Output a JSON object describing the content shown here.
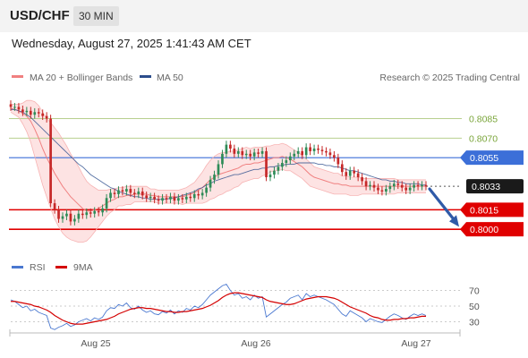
{
  "header": {
    "symbol": "USD/CHF",
    "timeframe": "30 MIN"
  },
  "datetime": "Wednesday, August 27, 2025 1:41:43 AM CET",
  "legend": {
    "bollinger": "MA 20 + Bollinger Bands",
    "ma50": "MA 50",
    "credit": "Research © 2025 Trading Central",
    "rsi": "RSI",
    "rsi_ma": "9MA"
  },
  "colors": {
    "bollinger": "#f08080",
    "bollinger_fill": "#fde3e3",
    "ma50": "#2c4d8c",
    "up_candle": "#2e8b57",
    "down_candle": "#c62828",
    "resistance": "#b8cf8f",
    "pivot": "#3c6fd8",
    "support": "#e00000",
    "current": "#1a1a1a",
    "rsi": "#4a78d0",
    "rsi_ma": "#d40000",
    "arrow": "#2f5aa8"
  },
  "chart_data": [
    {
      "type": "candlestick",
      "x_labels": [
        "Aug 25",
        "Aug 26",
        "Aug 27"
      ],
      "ylim": [
        0.7985,
        0.8095
      ],
      "levels": [
        {
          "value": "0.8085",
          "kind": "resistance"
        },
        {
          "value": "0.8070",
          "kind": "resistance"
        },
        {
          "value": "0.8055",
          "kind": "pivot"
        },
        {
          "value": "0.8033",
          "kind": "current"
        },
        {
          "value": "0.8015",
          "kind": "support"
        },
        {
          "value": "0.8000",
          "kind": "support"
        }
      ],
      "close_series": [
        0.8094,
        0.8094,
        0.8092,
        0.809,
        0.8091,
        0.8088,
        0.809,
        0.8089,
        0.8087,
        0.8085,
        0.802,
        0.8015,
        0.8008,
        0.801,
        0.8012,
        0.8006,
        0.8008,
        0.8012,
        0.8011,
        0.8013,
        0.8012,
        0.8014,
        0.8013,
        0.8016,
        0.8024,
        0.8028,
        0.8027,
        0.803,
        0.8029,
        0.8031,
        0.8028,
        0.8027,
        0.8029,
        0.8026,
        0.8024,
        0.8025,
        0.8023,
        0.8022,
        0.8024,
        0.8023,
        0.8025,
        0.8022,
        0.8024,
        0.8023,
        0.8025,
        0.8024,
        0.8027,
        0.8026,
        0.8028,
        0.8032,
        0.8038,
        0.8042,
        0.805,
        0.8058,
        0.8065,
        0.8062,
        0.8058,
        0.806,
        0.8057,
        0.8058,
        0.8056,
        0.8059,
        0.8058,
        0.806,
        0.804,
        0.8042,
        0.8045,
        0.8048,
        0.8051,
        0.8053,
        0.8056,
        0.8058,
        0.806,
        0.8057,
        0.8063,
        0.806,
        0.8062,
        0.8061,
        0.806,
        0.8059,
        0.8057,
        0.8055,
        0.805,
        0.8044,
        0.8041,
        0.8045,
        0.8043,
        0.804,
        0.8037,
        0.8033,
        0.8034,
        0.8032,
        0.803,
        0.8029,
        0.8031,
        0.8033,
        0.8035,
        0.8034,
        0.8032,
        0.803,
        0.8032,
        0.8034,
        0.8033,
        0.8034,
        0.8033
      ],
      "ma20_series": [
        0.8093,
        0.8092,
        0.8091,
        0.8089,
        0.8087,
        0.8083,
        0.8077,
        0.807,
        0.8062,
        0.8055,
        0.8049,
        0.8043,
        0.8038,
        0.8033,
        0.8029,
        0.8025,
        0.8022,
        0.8019,
        0.8016,
        0.8014,
        0.8014,
        0.8015,
        0.8016,
        0.8018,
        0.802,
        0.8022,
        0.8023,
        0.8025,
        0.8025,
        0.8026,
        0.8026,
        0.8027,
        0.8027,
        0.8027,
        0.8027,
        0.8026,
        0.8026,
        0.8025,
        0.8025,
        0.8025,
        0.8025,
        0.8025,
        0.8025,
        0.8025,
        0.8026,
        0.8027,
        0.8028,
        0.803,
        0.8032,
        0.8035,
        0.8038,
        0.804,
        0.8042,
        0.8043,
        0.8044,
        0.8045,
        0.8046,
        0.8047,
        0.8049,
        0.805,
        0.805,
        0.8051,
        0.8051,
        0.8052,
        0.8053,
        0.8054,
        0.8055,
        0.8055,
        0.8056,
        0.8055,
        0.8054,
        0.8052,
        0.805,
        0.8048,
        0.8045,
        0.8042,
        0.804,
        0.8039,
        0.8038,
        0.8037,
        0.8036,
        0.8035,
        0.8035,
        0.8034,
        0.8034,
        0.8033,
        0.8033,
        0.8033,
        0.8033,
        0.8033,
        0.8033,
        0.8033,
        0.8033,
        0.8033,
        0.8033,
        0.8033,
        0.8033,
        0.8033,
        0.8033,
        0.8033,
        0.8033,
        0.8033,
        0.8033,
        0.8033,
        0.8033
      ],
      "band_width_series": [
        3,
        4,
        5,
        8,
        12,
        16,
        21,
        25,
        28,
        30,
        33,
        35,
        36,
        36,
        35,
        33,
        31,
        29,
        26,
        23,
        20,
        17,
        14,
        12,
        10,
        9,
        8,
        7,
        7,
        7,
        7,
        6,
        6,
        6,
        6,
        5,
        5,
        5,
        5,
        5,
        5,
        5,
        5,
        6,
        6,
        7,
        8,
        10,
        12,
        14,
        15,
        16,
        16,
        16,
        15,
        15,
        14,
        14,
        13,
        13,
        12,
        12,
        12,
        11,
        11,
        10,
        10,
        10,
        10,
        10,
        9,
        9,
        9,
        9,
        9,
        9,
        8,
        8,
        8,
        8,
        8,
        8,
        8,
        7,
        7,
        7,
        7,
        7,
        6,
        6,
        6,
        6,
        6,
        6,
        6,
        6,
        6,
        5,
        5,
        5,
        5,
        5,
        5,
        5,
        5
      ],
      "ma50_series": [
        0.8092,
        0.8092,
        0.8091,
        0.809,
        0.8088,
        0.8086,
        0.8083,
        0.808,
        0.8077,
        0.8074,
        0.8071,
        0.8068,
        0.8065,
        0.8062,
        0.8059,
        0.8056,
        0.8053,
        0.805,
        0.8048,
        0.8045,
        0.8042,
        0.804,
        0.8038,
        0.8036,
        0.8034,
        0.8032,
        0.8031,
        0.8029,
        0.8028,
        0.8027,
        0.8026,
        0.8025,
        0.8025,
        0.8024,
        0.8024,
        0.8023,
        0.8023,
        0.8023,
        0.8023,
        0.8023,
        0.8024,
        0.8024,
        0.8025,
        0.8026,
        0.8027,
        0.8028,
        0.8029,
        0.8031,
        0.8032,
        0.8034,
        0.8035,
        0.8037,
        0.8038,
        0.8039,
        0.804,
        0.8041,
        0.8042,
        0.8042,
        0.8043,
        0.8044,
        0.8045,
        0.8046,
        0.8046,
        0.8047,
        0.8047,
        0.8048,
        0.8048,
        0.8049,
        0.8049,
        0.805,
        0.805,
        0.805,
        0.8051,
        0.8051,
        0.8051,
        0.8051,
        0.8051,
        0.805,
        0.805,
        0.8049,
        0.8049,
        0.8048,
        0.8048,
        0.8047,
        0.8046,
        0.8045,
        0.8045,
        0.8044,
        0.8043,
        0.8042,
        0.8041,
        0.804,
        0.8039,
        0.8038,
        0.8038,
        0.8037,
        0.8037,
        0.8036,
        0.8036,
        0.8035,
        0.8035,
        0.8035,
        0.8035,
        0.8034,
        0.8034
      ]
    },
    {
      "type": "line",
      "title": "RSI",
      "ylim": [
        18,
        82
      ],
      "y_ticks": [
        "70",
        "50",
        "30"
      ],
      "series": [
        {
          "name": "RSI",
          "values": [
            58,
            56,
            52,
            48,
            50,
            44,
            46,
            42,
            40,
            38,
            22,
            20,
            23,
            25,
            28,
            24,
            26,
            30,
            32,
            34,
            31,
            35,
            33,
            36,
            44,
            48,
            47,
            52,
            50,
            54,
            48,
            46,
            50,
            45,
            42,
            44,
            40,
            39,
            43,
            41,
            45,
            40,
            44,
            42,
            47,
            45,
            50,
            48,
            52,
            58,
            64,
            68,
            72,
            76,
            78,
            70,
            64,
            66,
            60,
            62,
            58,
            64,
            60,
            62,
            36,
            40,
            44,
            48,
            52,
            55,
            60,
            62,
            64,
            58,
            66,
            62,
            64,
            62,
            60,
            58,
            55,
            52,
            46,
            40,
            37,
            44,
            41,
            38,
            35,
            30,
            34,
            32,
            30,
            29,
            33,
            37,
            40,
            38,
            35,
            33,
            37,
            40,
            38,
            40,
            38
          ]
        },
        {
          "name": "9MA",
          "values": [
            56,
            56,
            55,
            54,
            53,
            52,
            50,
            49,
            47,
            45,
            42,
            38,
            35,
            32,
            30,
            28,
            27,
            27,
            27,
            28,
            29,
            30,
            31,
            32,
            33,
            35,
            37,
            40,
            42,
            44,
            46,
            47,
            48,
            48,
            47,
            47,
            46,
            45,
            44,
            43,
            43,
            42,
            42,
            43,
            43,
            44,
            45,
            46,
            47,
            49,
            51,
            54,
            57,
            61,
            64,
            66,
            67,
            67,
            66,
            65,
            64,
            63,
            62,
            61,
            58,
            56,
            55,
            54,
            53,
            52,
            52,
            53,
            55,
            57,
            59,
            60,
            61,
            62,
            62,
            62,
            61,
            60,
            58,
            55,
            52,
            49,
            47,
            45,
            43,
            41,
            38,
            36,
            35,
            33,
            32,
            32,
            33,
            33,
            34,
            34,
            35,
            35,
            36,
            37,
            37
          ]
        }
      ]
    }
  ]
}
